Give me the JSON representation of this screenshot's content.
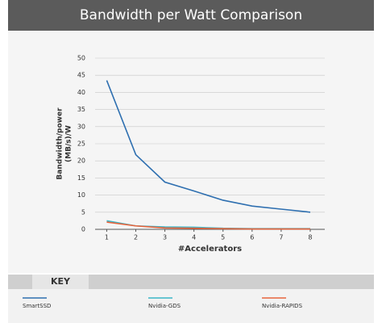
{
  "title": "Bandwidth per Watt Comparison",
  "chart_data": {
    "type": "line",
    "x_label": "#Accelerators",
    "y_label": [
      "Bandwidth/power",
      "(MB/s)/W"
    ],
    "x": [
      1,
      2,
      3,
      4,
      5,
      6,
      7,
      8
    ],
    "xlim": [
      0.6,
      8.5
    ],
    "xticks": [
      1,
      2,
      3,
      4,
      5,
      6,
      7,
      8
    ],
    "ylim": [
      0,
      50
    ],
    "yticks": [
      0,
      5,
      10,
      15,
      20,
      25,
      30,
      35,
      40,
      45,
      50
    ],
    "grid": true,
    "series": [
      {
        "name": "SmartSSD",
        "color": "#2e6fb0",
        "values": [
          43.5,
          21.8,
          13.8,
          11.2,
          8.5,
          6.8,
          5.9,
          5.0
        ]
      },
      {
        "name": "Nvidia-GDS",
        "color": "#3bb6c8",
        "values": [
          2.5,
          1.0,
          0.7,
          0.6,
          0.3,
          0.2,
          0.2,
          0.2
        ]
      },
      {
        "name": "Nvidia-RAPIDS",
        "color": "#e8643c",
        "values": [
          2.1,
          1.0,
          0.4,
          0.3,
          0.2,
          0.1,
          0.1,
          0.1
        ]
      }
    ]
  },
  "legend": {
    "title": "KEY"
  }
}
